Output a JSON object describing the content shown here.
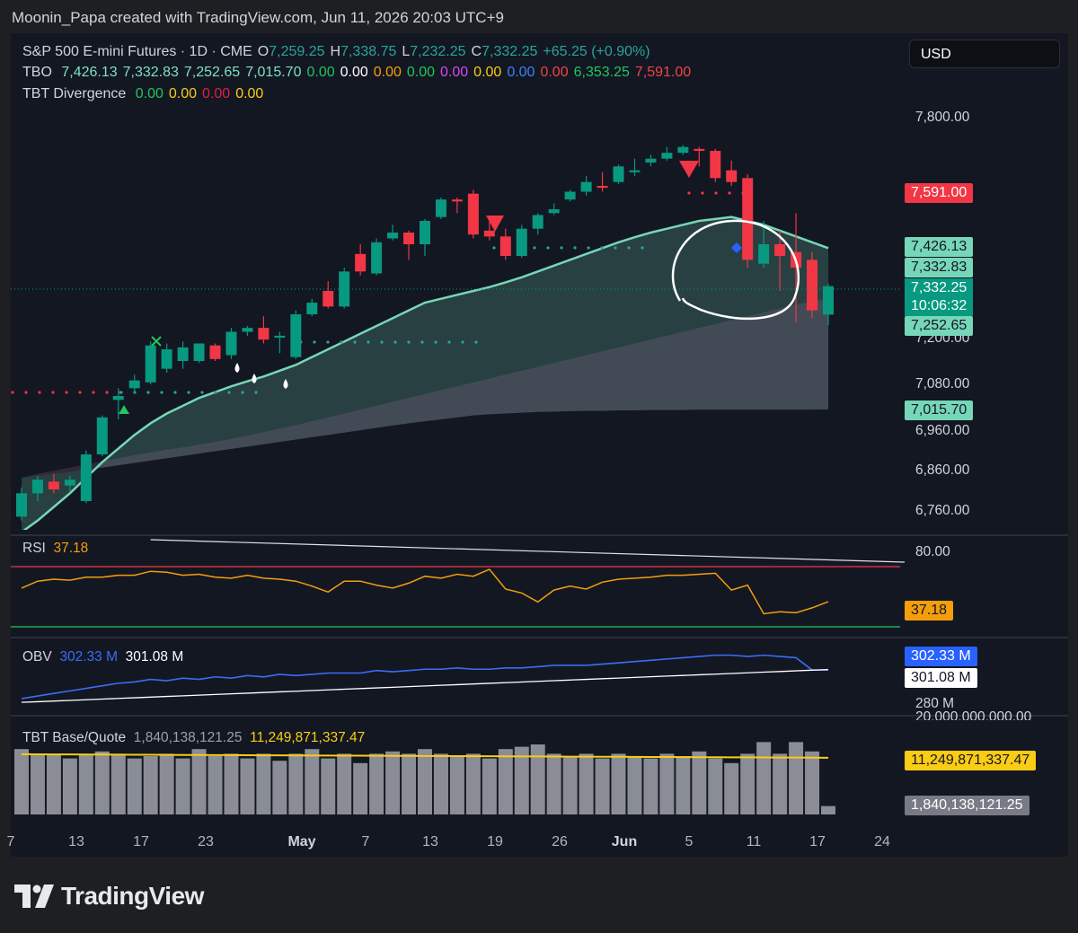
{
  "header": {
    "credit": "Moonin_Papa created with TradingView.com, Jun 11, 2026 20:03 UTC+9"
  },
  "currency": "USD",
  "symbol_legend": {
    "name": "S&P 500 E-mini Futures · 1D · CME",
    "o_label": "O",
    "o": "7,259.25",
    "h_label": "H",
    "h": "7,338.75",
    "l_label": "L",
    "l": "7,232.25",
    "c_label": "C",
    "c": "7,332.25",
    "change": "+65.25 (+0.90%)"
  },
  "tbo_legend": {
    "name": "TBO",
    "values": [
      {
        "text": "7,426.13",
        "color": "#7ee0c0"
      },
      {
        "text": "7,332.83",
        "color": "#7ee0c0"
      },
      {
        "text": "7,252.65",
        "color": "#7ee0c0"
      },
      {
        "text": "7,015.70",
        "color": "#7ee0c0"
      },
      {
        "text": "0.00",
        "color": "#22c55e"
      },
      {
        "text": "0.00",
        "color": "#ffffff"
      },
      {
        "text": "0.00",
        "color": "#f59e0b"
      },
      {
        "text": "0.00",
        "color": "#22c55e"
      },
      {
        "text": "0.00",
        "color": "#d946ef"
      },
      {
        "text": "0.00",
        "color": "#facc15"
      },
      {
        "text": "0.00",
        "color": "#3b82f6"
      },
      {
        "text": "0.00",
        "color": "#ef4444"
      },
      {
        "text": "6,353.25",
        "color": "#22c55e"
      },
      {
        "text": "7,591.00",
        "color": "#ef4444"
      }
    ]
  },
  "tbt_legend": {
    "name": "TBT Divergence",
    "values": [
      {
        "text": "0.00",
        "color": "#22c55e"
      },
      {
        "text": "0.00",
        "color": "#facc15"
      },
      {
        "text": "0.00",
        "color": "#e11d48"
      },
      {
        "text": "0.00",
        "color": "#facc15"
      }
    ]
  },
  "price_axis": [
    "7,800.00",
    "7,200.00",
    "7,080.00",
    "6,960.00",
    "6,860.00",
    "6,760.00"
  ],
  "price_labels": [
    {
      "text": "7,591.00",
      "bg": "#f23645",
      "fg": "#ffffff"
    },
    {
      "text": "7,426.13",
      "bg": "#76d7b8",
      "fg": "#131722"
    },
    {
      "text": "7,332.83",
      "bg": "#76d7b8",
      "fg": "#131722"
    },
    {
      "text": "7,332.25",
      "bg": "#089981",
      "fg": "#ffffff"
    },
    {
      "text": "10:06:32",
      "bg": "#089981",
      "fg": "#ffffff"
    },
    {
      "text": "7,252.65",
      "bg": "#76d7b8",
      "fg": "#131722"
    },
    {
      "text": "7,015.70",
      "bg": "#76d7b8",
      "fg": "#131722"
    }
  ],
  "rsi": {
    "name": "RSI",
    "value": "37.18",
    "axis": "80.00",
    "label": "37.18"
  },
  "obv": {
    "name": "OBV",
    "v1": "302.33 M",
    "v2": "301.08 M",
    "axis": "280 M",
    "label1": "302.33 M",
    "label2": "301.08 M"
  },
  "tbt_bq": {
    "name": "TBT Base/Quote",
    "v1": "1,840,138,121.25",
    "v2": "11,249,871,337.47",
    "axis": "20,000,000,000.00",
    "label1": "11,249,871,337.47",
    "label2": "1,840,138,121.25"
  },
  "x_axis": [
    "7",
    "13",
    "17",
    "23",
    "May",
    "7",
    "13",
    "19",
    "26",
    "Jun",
    "5",
    "11",
    "17",
    "24"
  ],
  "brand": "TradingView",
  "chart_data": {
    "type": "candlestick",
    "title": "S&P 500 E-mini Futures · 1D · CME",
    "ylim": [
      6720,
      7900
    ],
    "candles": [
      {
        "o": 6740,
        "h": 6815,
        "l": 6730,
        "c": 6800
      },
      {
        "o": 6800,
        "h": 6845,
        "l": 6780,
        "c": 6835
      },
      {
        "o": 6830,
        "h": 6850,
        "l": 6800,
        "c": 6810
      },
      {
        "o": 6820,
        "h": 6845,
        "l": 6805,
        "c": 6835
      },
      {
        "o": 6780,
        "h": 6910,
        "l": 6775,
        "c": 6900
      },
      {
        "o": 6900,
        "h": 7000,
        "l": 6895,
        "c": 6995
      },
      {
        "o": 7040,
        "h": 7070,
        "l": 6990,
        "c": 7050
      },
      {
        "o": 7070,
        "h": 7105,
        "l": 7055,
        "c": 7090
      },
      {
        "o": 7085,
        "h": 7190,
        "l": 7080,
        "c": 7180
      },
      {
        "o": 7120,
        "h": 7185,
        "l": 7110,
        "c": 7170
      },
      {
        "o": 7140,
        "h": 7190,
        "l": 7120,
        "c": 7175
      },
      {
        "o": 7140,
        "h": 7185,
        "l": 7135,
        "c": 7185
      },
      {
        "o": 7180,
        "h": 7185,
        "l": 7140,
        "c": 7145
      },
      {
        "o": 7155,
        "h": 7225,
        "l": 7145,
        "c": 7215
      },
      {
        "o": 7215,
        "h": 7230,
        "l": 7205,
        "c": 7225
      },
      {
        "o": 7225,
        "h": 7255,
        "l": 7185,
        "c": 7195
      },
      {
        "o": 7200,
        "h": 7215,
        "l": 7160,
        "c": 7205
      },
      {
        "o": 7150,
        "h": 7270,
        "l": 7145,
        "c": 7260
      },
      {
        "o": 7260,
        "h": 7300,
        "l": 7255,
        "c": 7290
      },
      {
        "o": 7320,
        "h": 7345,
        "l": 7275,
        "c": 7280
      },
      {
        "o": 7280,
        "h": 7380,
        "l": 7275,
        "c": 7370
      },
      {
        "o": 7415,
        "h": 7440,
        "l": 7360,
        "c": 7370
      },
      {
        "o": 7365,
        "h": 7455,
        "l": 7360,
        "c": 7445
      },
      {
        "o": 7455,
        "h": 7490,
        "l": 7450,
        "c": 7470
      },
      {
        "o": 7470,
        "h": 7475,
        "l": 7400,
        "c": 7440
      },
      {
        "o": 7440,
        "h": 7505,
        "l": 7410,
        "c": 7500
      },
      {
        "o": 7510,
        "h": 7560,
        "l": 7505,
        "c": 7555
      },
      {
        "o": 7555,
        "h": 7560,
        "l": 7520,
        "c": 7550
      },
      {
        "o": 7570,
        "h": 7580,
        "l": 7455,
        "c": 7465
      },
      {
        "o": 7475,
        "h": 7510,
        "l": 7450,
        "c": 7460
      },
      {
        "o": 7460,
        "h": 7480,
        "l": 7400,
        "c": 7410
      },
      {
        "o": 7410,
        "h": 7490,
        "l": 7405,
        "c": 7480
      },
      {
        "o": 7480,
        "h": 7520,
        "l": 7465,
        "c": 7515
      },
      {
        "o": 7520,
        "h": 7545,
        "l": 7515,
        "c": 7530
      },
      {
        "o": 7555,
        "h": 7580,
        "l": 7550,
        "c": 7575
      },
      {
        "o": 7575,
        "h": 7615,
        "l": 7565,
        "c": 7600
      },
      {
        "o": 7590,
        "h": 7625,
        "l": 7575,
        "c": 7585
      },
      {
        "o": 7600,
        "h": 7645,
        "l": 7595,
        "c": 7640
      },
      {
        "o": 7625,
        "h": 7660,
        "l": 7615,
        "c": 7630
      },
      {
        "o": 7650,
        "h": 7670,
        "l": 7640,
        "c": 7660
      },
      {
        "o": 7660,
        "h": 7690,
        "l": 7655,
        "c": 7675
      },
      {
        "o": 7675,
        "h": 7695,
        "l": 7670,
        "c": 7690
      },
      {
        "o": 7685,
        "h": 7690,
        "l": 7640,
        "c": 7680
      },
      {
        "o": 7680,
        "h": 7685,
        "l": 7600,
        "c": 7610
      },
      {
        "o": 7630,
        "h": 7655,
        "l": 7590,
        "c": 7600
      },
      {
        "o": 7610,
        "h": 7620,
        "l": 7380,
        "c": 7400
      },
      {
        "o": 7390,
        "h": 7500,
        "l": 7380,
        "c": 7440
      },
      {
        "o": 7440,
        "h": 7475,
        "l": 7320,
        "c": 7410
      },
      {
        "o": 7420,
        "h": 7520,
        "l": 7240,
        "c": 7380
      },
      {
        "o": 7400,
        "h": 7420,
        "l": 7250,
        "c": 7270
      },
      {
        "o": 7259.25,
        "h": 7338.75,
        "l": 7232.25,
        "c": 7332.25
      }
    ],
    "tbo_fast": [
      6700,
      6730,
      6765,
      6800,
      6840,
      6880,
      6915,
      6950,
      6980,
      7005,
      7025,
      7045,
      7060,
      7075,
      7088,
      7100,
      7115,
      7130,
      7150,
      7170,
      7190,
      7210,
      7230,
      7250,
      7270,
      7290,
      7300,
      7310,
      7320,
      7330,
      7342,
      7355,
      7370,
      7385,
      7400,
      7415,
      7430,
      7445,
      7458,
      7470,
      7480,
      7490,
      7500,
      7505,
      7510,
      7500,
      7490,
      7475,
      7460,
      7445,
      7430
    ],
    "tbo_slow": [
      6840,
      6850,
      6858,
      6866,
      6874,
      6882,
      6890,
      6898,
      6905,
      6912,
      6918,
      6925,
      6932,
      6940,
      6948,
      6957,
      6966,
      6975,
      6985,
      6995,
      7005,
      7015,
      7025,
      7035,
      7045,
      7055,
      7065,
      7075,
      7085,
      7095,
      7105,
      7115,
      7125,
      7135,
      7145,
      7155,
      7165,
      7175,
      7185,
      7195,
      7205,
      7215,
      7225,
      7235,
      7245,
      7255,
      7265,
      7275,
      7285,
      7292,
      7300
    ],
    "tbo_base": [
      6840,
      6845,
      6850,
      6855,
      6860,
      6866,
      6872,
      6878,
      6884,
      6890,
      6896,
      6902,
      6908,
      6914,
      6920,
      6926,
      6932,
      6938,
      6944,
      6950,
      6956,
      6962,
      6968,
      6974,
      6980,
      6985,
      6990,
      6995,
      7000,
      7003,
      7005,
      7007,
      7009,
      7010,
      7011,
      7012,
      7012,
      7013,
      7013,
      7014,
      7014,
      7014,
      7015,
      7015,
      7015,
      7015,
      7015,
      7015,
      7015,
      7015,
      7015.7
    ],
    "rsi": [
      51,
      58,
      60,
      59,
      62,
      62,
      64,
      64,
      68,
      67,
      64,
      65,
      62,
      61,
      64,
      61,
      60,
      58,
      53,
      47,
      58,
      58,
      54,
      51,
      56,
      63,
      61,
      65,
      63,
      70,
      50,
      46,
      37,
      49,
      53,
      50,
      57,
      60,
      61,
      62,
      64,
      64,
      65,
      66,
      49,
      54,
      25,
      27,
      26,
      31,
      37.18
    ],
    "obv": [
      280,
      282,
      284,
      286,
      288,
      290,
      292,
      293,
      295,
      294,
      296,
      295,
      297,
      296,
      298,
      297,
      299,
      298,
      299,
      300,
      300,
      300,
      302,
      301,
      302,
      303,
      303,
      304,
      303,
      303,
      304,
      304,
      305,
      306,
      306,
      306,
      307,
      308,
      309,
      310,
      311,
      312,
      313,
      314,
      314,
      313,
      314,
      313,
      312,
      302.33,
      302.33
    ],
    "volume_bq": [
      1.4,
      1.3,
      1.3,
      1.2,
      1.3,
      1.35,
      1.3,
      1.2,
      1.25,
      1.3,
      1.2,
      1.4,
      1.25,
      1.3,
      1.2,
      1.3,
      1.15,
      1.3,
      1.4,
      1.2,
      1.3,
      1.1,
      1.3,
      1.35,
      1.3,
      1.4,
      1.3,
      1.25,
      1.3,
      1.2,
      1.4,
      1.45,
      1.5,
      1.3,
      1.25,
      1.3,
      1.2,
      1.3,
      1.25,
      1.2,
      1.3,
      1.25,
      1.35,
      1.2,
      1.1,
      1.3,
      1.55,
      1.3,
      1.55,
      1.35,
      0.18
    ]
  }
}
